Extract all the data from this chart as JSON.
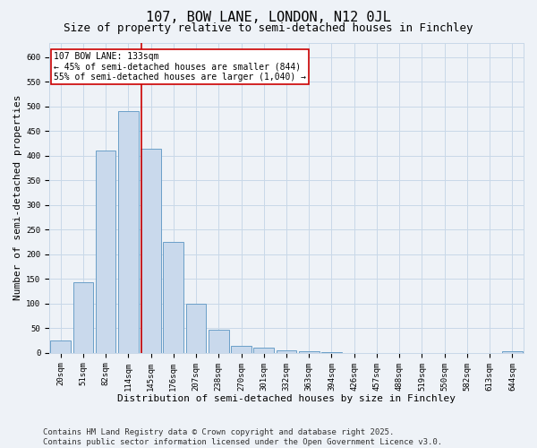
{
  "title": "107, BOW LANE, LONDON, N12 0JL",
  "subtitle": "Size of property relative to semi-detached houses in Finchley",
  "xlabel": "Distribution of semi-detached houses by size in Finchley",
  "ylabel": "Number of semi-detached properties",
  "categories": [
    "20sqm",
    "51sqm",
    "82sqm",
    "114sqm",
    "145sqm",
    "176sqm",
    "207sqm",
    "238sqm",
    "270sqm",
    "301sqm",
    "332sqm",
    "363sqm",
    "394sqm",
    "426sqm",
    "457sqm",
    "488sqm",
    "519sqm",
    "550sqm",
    "582sqm",
    "613sqm",
    "644sqm"
  ],
  "values": [
    25,
    144,
    410,
    490,
    415,
    225,
    100,
    47,
    15,
    10,
    5,
    3,
    1,
    0,
    0,
    0,
    0,
    0,
    0,
    0,
    4
  ],
  "bar_color": "#c9d9ec",
  "bar_edge_color": "#6b9fc8",
  "grid_color": "#c8d8e8",
  "background_color": "#eef2f7",
  "vline_color": "#cc0000",
  "vline_x": 3.57,
  "annotation_text": "107 BOW LANE: 133sqm\n← 45% of semi-detached houses are smaller (844)\n55% of semi-detached houses are larger (1,040) →",
  "annotation_box_facecolor": "#ffffff",
  "annotation_box_edgecolor": "#cc0000",
  "footer_line1": "Contains HM Land Registry data © Crown copyright and database right 2025.",
  "footer_line2": "Contains public sector information licensed under the Open Government Licence v3.0.",
  "ylim": [
    0,
    630
  ],
  "yticks": [
    0,
    50,
    100,
    150,
    200,
    250,
    300,
    350,
    400,
    450,
    500,
    550,
    600
  ],
  "title_fontsize": 11,
  "subtitle_fontsize": 9,
  "axis_label_fontsize": 8,
  "tick_fontsize": 6.5,
  "annotation_fontsize": 7,
  "footer_fontsize": 6.5
}
